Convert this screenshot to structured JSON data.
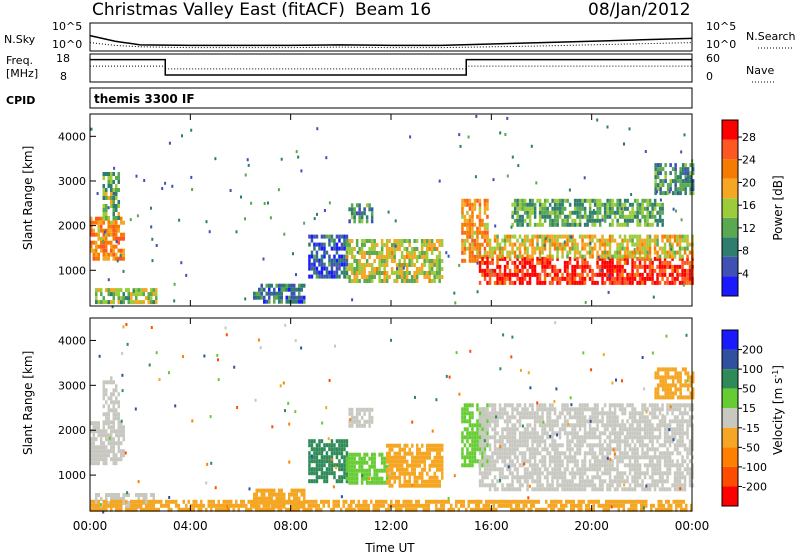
{
  "header": {
    "station": "Christmas Valley East (fitACF)",
    "beam": "Beam 16",
    "date": "08/Jan/2012"
  },
  "side_labels": {
    "nsky": "N.Sky",
    "freq": "Freq.",
    "freq_unit": "[MHz]",
    "cpid": "CPID",
    "nsearch": "N.Search",
    "nave": "Nave"
  },
  "cpid_text": "themis 3300 IF",
  "colors": {
    "power": [
      "#1a1aff",
      "#3f51b5",
      "#2e7d6e",
      "#5aa84f",
      "#9ccc3a",
      "#f5a623",
      "#f57c00",
      "#ff5722",
      "#ff0000"
    ],
    "velocity": [
      "#ff0000",
      "#ff4d00",
      "#ff8000",
      "#f5a623",
      "#c8c8c0",
      "#66cc33",
      "#2e8b57",
      "#3050a0",
      "#1a1aff"
    ]
  },
  "chart_data": [
    {
      "type": "line",
      "panel": "noise",
      "ylabel_left": "N.Sky",
      "ylabel_right": "N.Search",
      "left_ticks": [
        "10^5",
        "10^0"
      ],
      "right_ticks": [
        "10^5",
        "10^0"
      ],
      "x": [
        0,
        1,
        2,
        4,
        6,
        8,
        10,
        12,
        14,
        16,
        18,
        20,
        22,
        24
      ],
      "nsky_level": [
        0.55,
        0.35,
        0.22,
        0.2,
        0.2,
        0.2,
        0.22,
        0.2,
        0.2,
        0.25,
        0.3,
        0.35,
        0.4,
        0.45
      ],
      "nsearch_level": [
        0.3,
        0.2,
        0.15,
        0.12,
        0.12,
        0.12,
        0.14,
        0.12,
        0.12,
        0.15,
        0.18,
        0.22,
        0.26,
        0.3
      ]
    },
    {
      "type": "line",
      "panel": "frequency",
      "ylabel_left": "Freq. [MHz]",
      "ylabel_right": "Nave",
      "left_ticks": [
        18,
        8
      ],
      "right_ticks": [
        60,
        0
      ],
      "frequency_mhz": [
        {
          "x": 0,
          "y": 16
        },
        {
          "x": 3.0,
          "y": 16
        },
        {
          "x": 3.0,
          "y": 10.5
        },
        {
          "x": 15.0,
          "y": 10.5
        },
        {
          "x": 15.0,
          "y": 16
        },
        {
          "x": 24,
          "y": 16
        }
      ],
      "nave": [
        {
          "x": 0,
          "y": 34
        },
        {
          "x": 3.0,
          "y": 34
        },
        {
          "x": 3.0,
          "y": 28
        },
        {
          "x": 15.0,
          "y": 28
        },
        {
          "x": 15.0,
          "y": 34
        },
        {
          "x": 24,
          "y": 34
        }
      ]
    },
    {
      "type": "heatmap",
      "panel": "power",
      "xlabel": "",
      "ylabel": "Slant Range [km]",
      "xlim": [
        0,
        24
      ],
      "ylim": [
        200,
        4500
      ],
      "yticks": [
        1000,
        2000,
        3000,
        4000
      ],
      "colorbar_label": "Power [dB]",
      "colorbar_ticks": [
        4,
        8,
        12,
        16,
        20,
        24,
        28
      ],
      "colorbar_range": [
        0,
        31
      ],
      "echo_regions": [
        {
          "t0": 0.0,
          "t1": 1.3,
          "r0": 1300,
          "r1": 2200,
          "value": 22
        },
        {
          "t0": 0.5,
          "t1": 1.1,
          "r0": 2200,
          "r1": 3200,
          "value": 13
        },
        {
          "t0": 0.2,
          "t1": 2.6,
          "r0": 250,
          "r1": 600,
          "value": 14
        },
        {
          "t0": 6.5,
          "t1": 8.5,
          "r0": 300,
          "r1": 700,
          "value": 7
        },
        {
          "t0": 8.7,
          "t1": 10.2,
          "r0": 900,
          "r1": 1800,
          "value": 6
        },
        {
          "t0": 10.2,
          "t1": 14.0,
          "r0": 800,
          "r1": 1700,
          "value": 16
        },
        {
          "t0": 10.3,
          "t1": 11.2,
          "r0": 2100,
          "r1": 2500,
          "value": 10
        },
        {
          "t0": 14.8,
          "t1": 15.8,
          "r0": 1200,
          "r1": 2600,
          "value": 21
        },
        {
          "t0": 15.5,
          "t1": 24.0,
          "r0": 700,
          "r1": 1300,
          "value": 28
        },
        {
          "t0": 15.8,
          "t1": 24.0,
          "r0": 1300,
          "r1": 1800,
          "value": 18
        },
        {
          "t0": 16.8,
          "t1": 22.8,
          "r0": 2000,
          "r1": 2600,
          "value": 12
        },
        {
          "t0": 22.5,
          "t1": 24.0,
          "r0": 2700,
          "r1": 3400,
          "value": 10
        }
      ]
    },
    {
      "type": "heatmap",
      "panel": "velocity",
      "xlabel": "Time UT",
      "ylabel": "Slant Range [km]",
      "xlim": [
        0,
        24
      ],
      "ylim": [
        200,
        4500
      ],
      "yticks": [
        1000,
        2000,
        3000,
        4000
      ],
      "xticks": [
        "00:00",
        "04:00",
        "08:00",
        "12:00",
        "16:00",
        "20:00",
        "00:00"
      ],
      "colorbar_label": "Velocity [m s^-1]",
      "colorbar_ticks": [
        "200",
        "100",
        "50",
        "15",
        "-15",
        "-50",
        "-100",
        "-200"
      ],
      "echo_regions": [
        {
          "t0": 0.0,
          "t1": 1.3,
          "r0": 1300,
          "r1": 2200,
          "value": 0
        },
        {
          "t0": 0.5,
          "t1": 1.1,
          "r0": 2200,
          "r1": 3200,
          "value": 0
        },
        {
          "t0": 0.2,
          "t1": 2.6,
          "r0": 250,
          "r1": 600,
          "value": 0
        },
        {
          "t0": 6.5,
          "t1": 8.5,
          "r0": 300,
          "r1": 700,
          "value": -40
        },
        {
          "t0": 8.7,
          "t1": 10.2,
          "r0": 900,
          "r1": 1800,
          "value": 60
        },
        {
          "t0": 10.2,
          "t1": 11.8,
          "r0": 800,
          "r1": 1500,
          "value": 30
        },
        {
          "t0": 11.8,
          "t1": 14.0,
          "r0": 800,
          "r1": 1700,
          "value": -40
        },
        {
          "t0": 10.3,
          "t1": 11.2,
          "r0": 2100,
          "r1": 2500,
          "value": 0
        },
        {
          "t0": 14.8,
          "t1": 15.8,
          "r0": 1200,
          "r1": 2600,
          "value": 40
        },
        {
          "t0": 15.5,
          "t1": 24.0,
          "r0": 700,
          "r1": 2600,
          "value": 0
        },
        {
          "t0": 22.5,
          "t1": 24.0,
          "r0": 2700,
          "r1": 3400,
          "value": -30
        },
        {
          "t0": 0.0,
          "t1": 24.0,
          "r0": 200,
          "r1": 450,
          "value": -40
        }
      ]
    }
  ]
}
